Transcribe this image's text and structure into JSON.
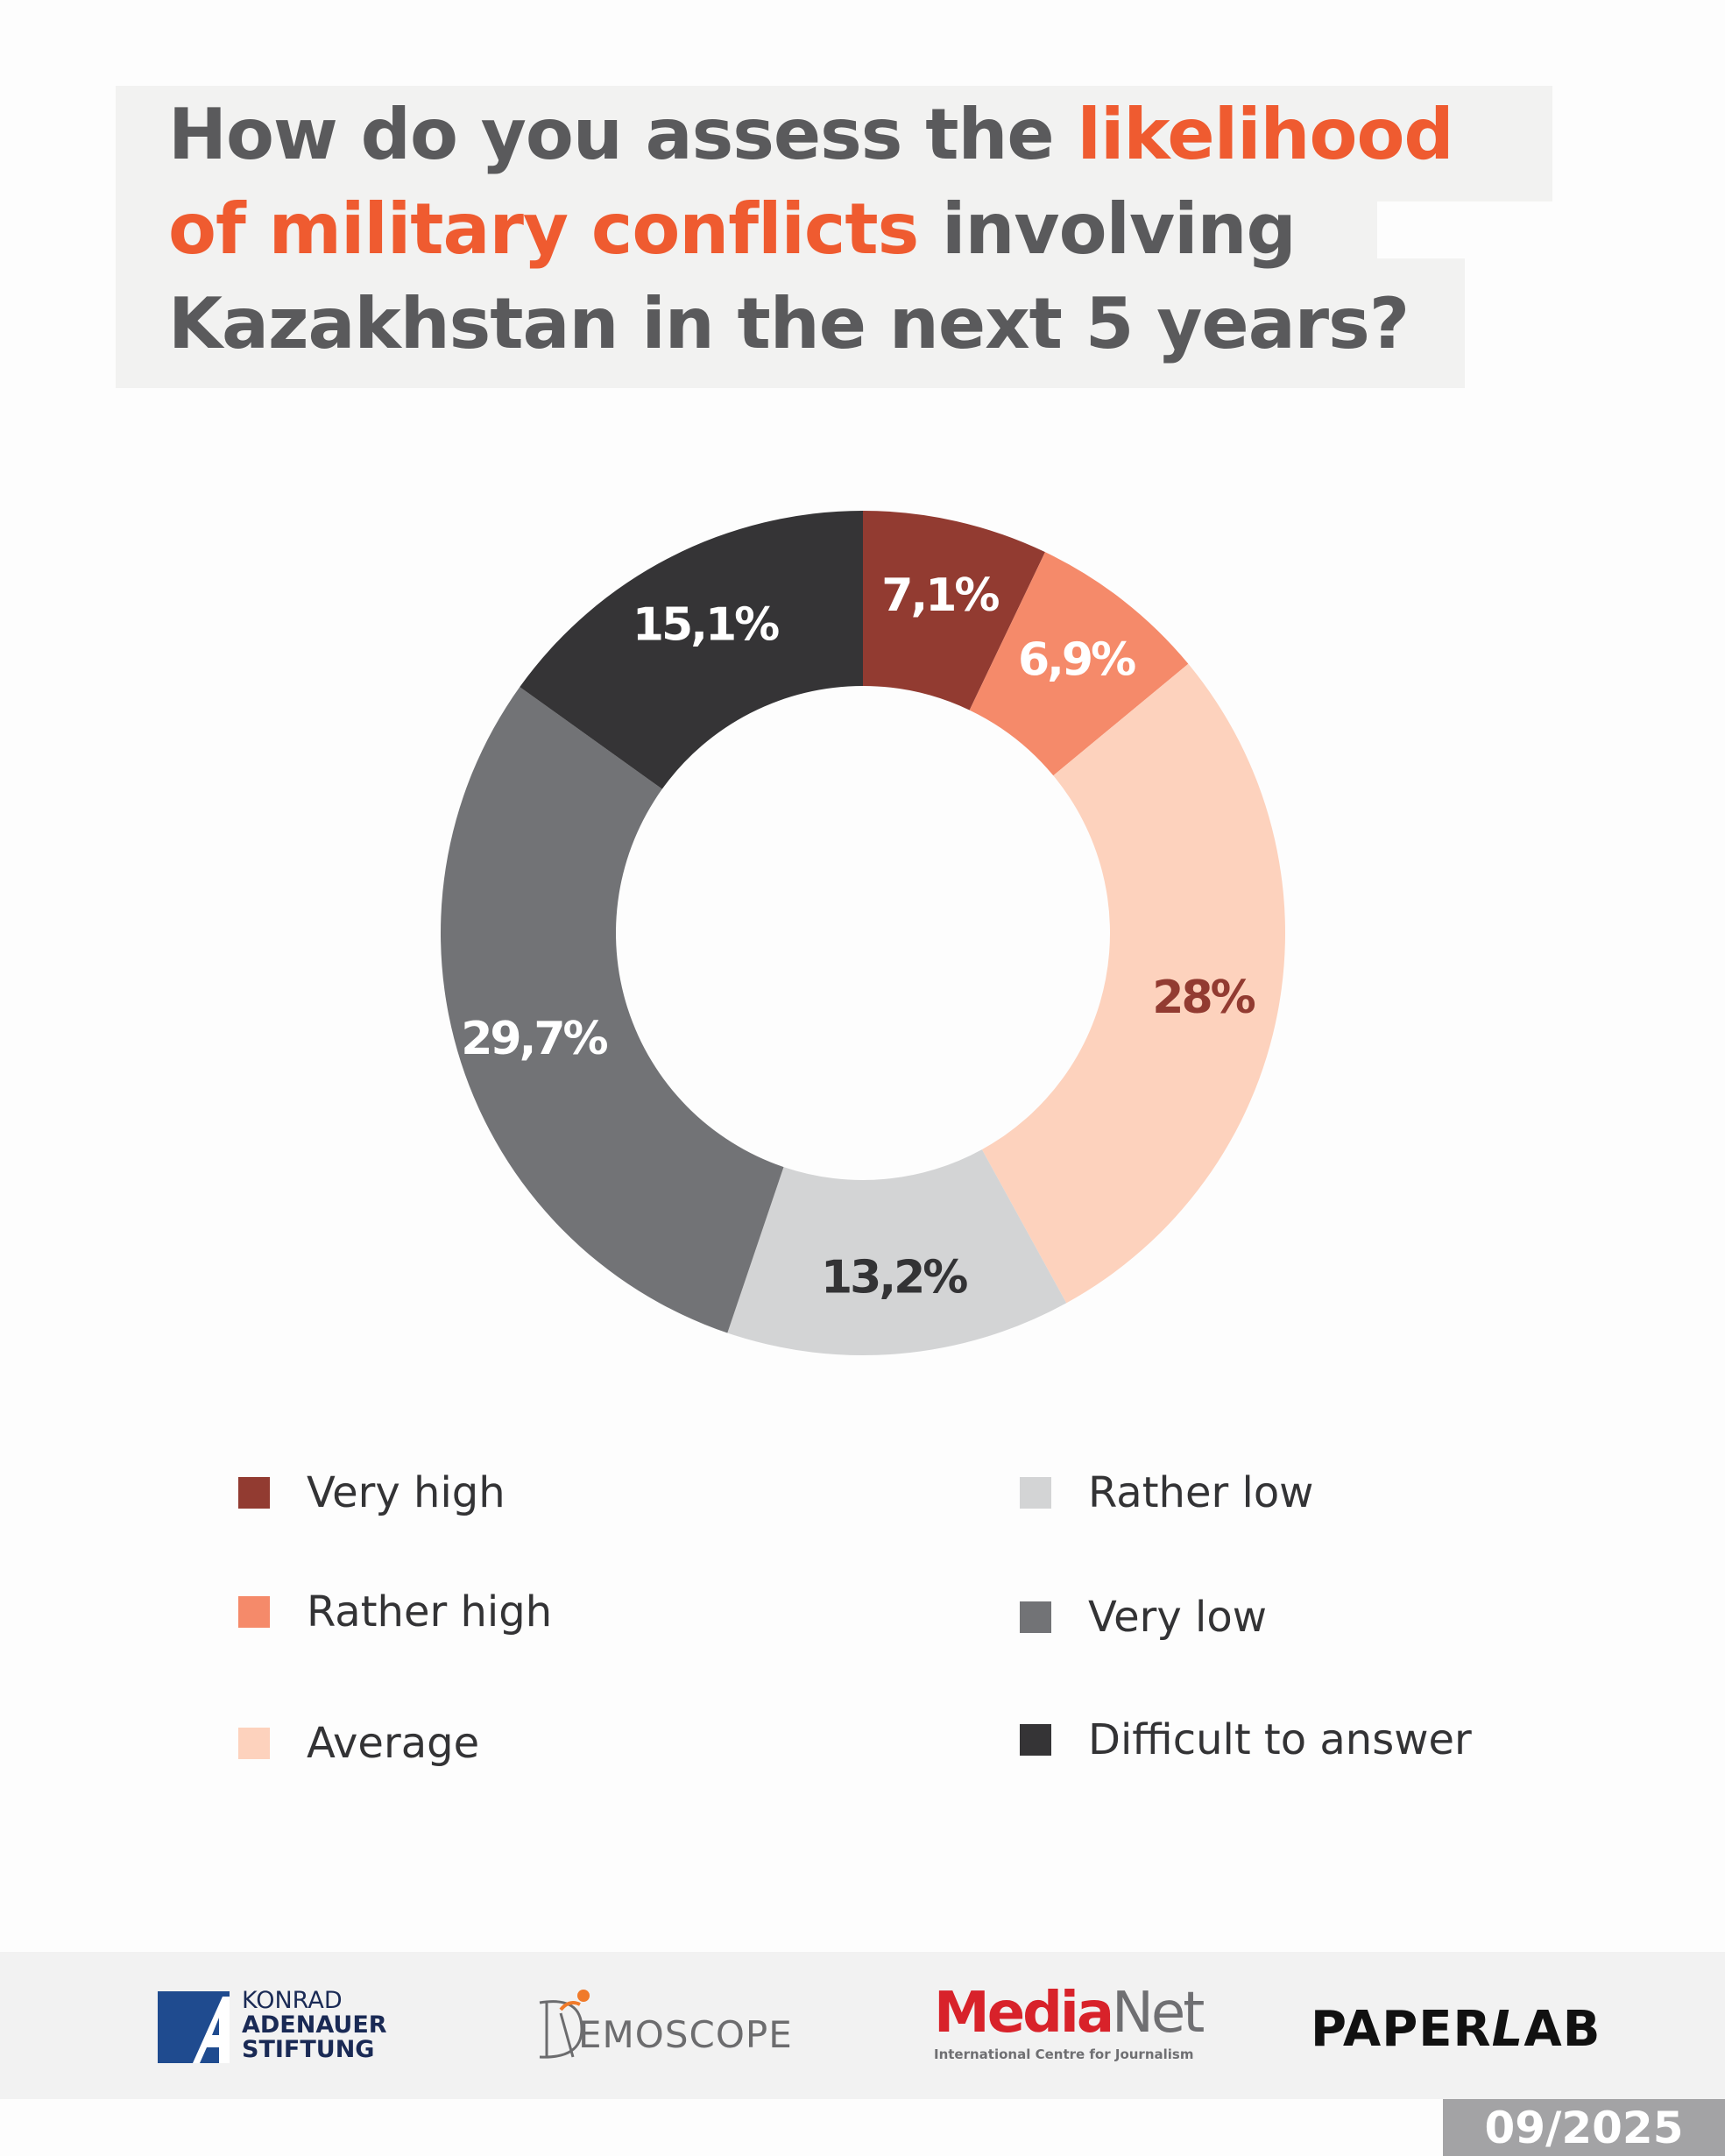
{
  "title": {
    "part1": "How do you assess the ",
    "highlight1": "likelihood",
    "highlight2": "of military conflicts",
    "part2": " involving",
    "part3": "Kazakhstan in the next 5 years?"
  },
  "colors": {
    "accent": "#ef5b30",
    "very_high": "#923b31",
    "rather_high": "#f58a6a",
    "average": "#fdd2bd",
    "rather_low": "#d3d4d5",
    "very_low": "#727376",
    "difficult": "#353436"
  },
  "chart_data": {
    "type": "pie",
    "variant": "donut",
    "categories": [
      "Very high",
      "Rather high",
      "Average",
      "Rather low",
      "Very low",
      "Difficult to answer"
    ],
    "values": [
      7.1,
      6.9,
      28,
      13.2,
      29.7,
      15.1
    ],
    "labels": [
      "7,1%",
      "6,9%",
      "28%",
      "13,2%",
      "29,7%",
      "15,1%"
    ],
    "unit": "%",
    "start_angle_deg": 0,
    "direction": "clockwise",
    "legend_placement": "bottom"
  },
  "legend": [
    {
      "label": "Very high",
      "color": "#923b31"
    },
    {
      "label": "Rather high",
      "color": "#f58a6a"
    },
    {
      "label": "Average",
      "color": "#fdd2bd"
    },
    {
      "label": "Rather low",
      "color": "#d3d4d5"
    },
    {
      "label": "Very low",
      "color": "#727376"
    },
    {
      "label": "Difficult to answer",
      "color": "#353436"
    }
  ],
  "footer": {
    "kas_line1": "KONRAD",
    "kas_line2": "ADENAUER",
    "kas_line3": "STIFTUNG",
    "demoscope": "EMOSCOPE",
    "medianet_media": "Media",
    "medianet_net": "Net",
    "medianet_sub": "International Centre for Journalism",
    "paperlab_a": "PAPER",
    "paperlab_b": "L",
    "paperlab_c": "AB",
    "date": "09/2025"
  }
}
